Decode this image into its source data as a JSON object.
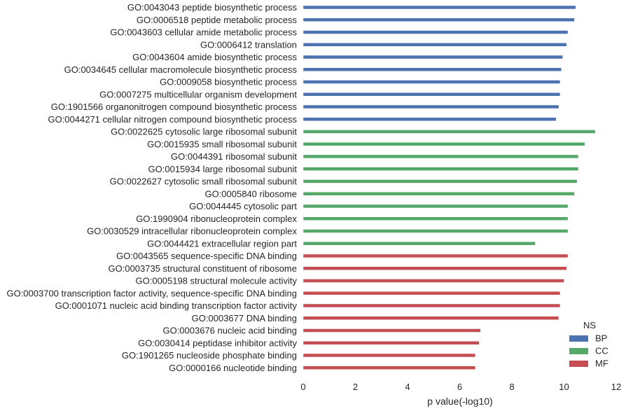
{
  "chart_data": {
    "type": "bar",
    "orientation": "horizontal",
    "xlabel": "p value(-log10)",
    "ylabel": "",
    "title": "",
    "xlim": [
      0,
      12
    ],
    "xticks": [
      "0",
      "2",
      "4",
      "6",
      "8",
      "10",
      "12"
    ],
    "grid": false,
    "legend": {
      "title": "NS",
      "position": "bottom-right",
      "entries": [
        {
          "label": "BP",
          "color": "#4c72b0"
        },
        {
          "label": "CC",
          "color": "#55a868"
        },
        {
          "label": "MF",
          "color": "#c44e52"
        }
      ]
    },
    "bars": [
      {
        "label": "GO:0043043 peptide biosynthetic process",
        "ns": "BP",
        "value": 10.45
      },
      {
        "label": "GO:0006518 peptide metabolic process",
        "ns": "BP",
        "value": 10.4
      },
      {
        "label": "GO:0043603 cellular amide metabolic process",
        "ns": "BP",
        "value": 10.15
      },
      {
        "label": "GO:0006412 translation",
        "ns": "BP",
        "value": 10.1
      },
      {
        "label": "GO:0043604 amide biosynthetic process",
        "ns": "BP",
        "value": 9.95
      },
      {
        "label": "GO:0034645 cellular macromolecule biosynthetic process",
        "ns": "BP",
        "value": 9.9
      },
      {
        "label": "GO:0009058 biosynthetic process",
        "ns": "BP",
        "value": 9.85
      },
      {
        "label": "GO:0007275 multicellular organism development",
        "ns": "BP",
        "value": 9.85
      },
      {
        "label": "GO:1901566 organonitrogen compound biosynthetic process",
        "ns": "BP",
        "value": 9.8
      },
      {
        "label": "GO:0044271 cellular nitrogen compound biosynthetic process",
        "ns": "BP",
        "value": 9.7
      },
      {
        "label": "GO:0022625 cytosolic large ribosomal subunit",
        "ns": "CC",
        "value": 11.2
      },
      {
        "label": "GO:0015935 small ribosomal subunit",
        "ns": "CC",
        "value": 10.8
      },
      {
        "label": "GO:0044391 ribosomal subunit",
        "ns": "CC",
        "value": 10.55
      },
      {
        "label": "GO:0015934 large ribosomal subunit",
        "ns": "CC",
        "value": 10.55
      },
      {
        "label": "GO:0022627 cytosolic small ribosomal subunit",
        "ns": "CC",
        "value": 10.5
      },
      {
        "label": "GO:0005840 ribosome",
        "ns": "CC",
        "value": 10.4
      },
      {
        "label": "GO:0044445 cytosolic part",
        "ns": "CC",
        "value": 10.15
      },
      {
        "label": "GO:1990904 ribonucleoprotein complex",
        "ns": "CC",
        "value": 10.15
      },
      {
        "label": "GO:0030529 intracellular ribonucleoprotein complex",
        "ns": "CC",
        "value": 10.15
      },
      {
        "label": "GO:0044421 extracellular region part",
        "ns": "CC",
        "value": 8.9
      },
      {
        "label": "GO:0043565 sequence-specific DNA binding",
        "ns": "MF",
        "value": 10.15
      },
      {
        "label": "GO:0003735 structural constituent of ribosome",
        "ns": "MF",
        "value": 10.1
      },
      {
        "label": "GO:0005198 structural molecule activity",
        "ns": "MF",
        "value": 10.0
      },
      {
        "label": "GO:0003700 transcription factor activity, sequence-specific DNA binding",
        "ns": "MF",
        "value": 9.85
      },
      {
        "label": "GO:0001071 nucleic acid binding transcription factor activity",
        "ns": "MF",
        "value": 9.85
      },
      {
        "label": "GO:0003677 DNA binding",
        "ns": "MF",
        "value": 9.8
      },
      {
        "label": "GO:0003676 nucleic acid binding",
        "ns": "MF",
        "value": 6.8
      },
      {
        "label": "GO:0030414 peptidase inhibitor activity",
        "ns": "MF",
        "value": 6.75
      },
      {
        "label": "GO:1901265 nucleoside phosphate binding",
        "ns": "MF",
        "value": 6.6
      },
      {
        "label": "GO:0000166 nucleotide binding",
        "ns": "MF",
        "value": 6.6
      }
    ]
  }
}
